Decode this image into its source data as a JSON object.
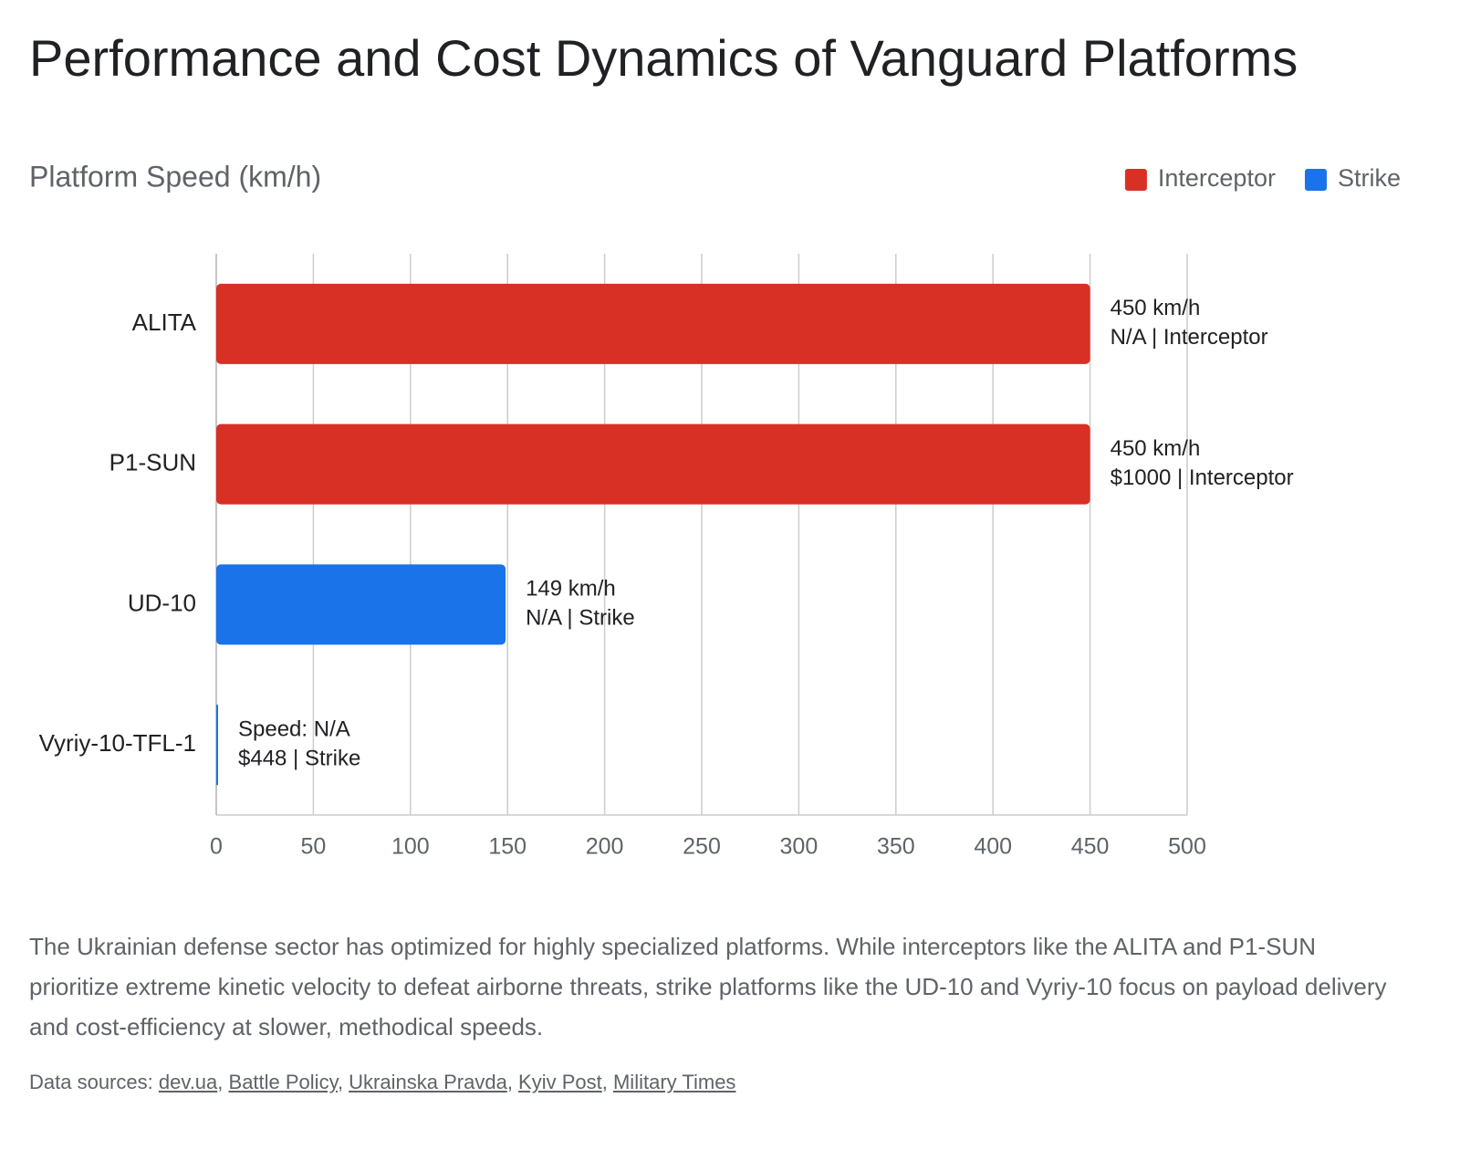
{
  "chart_data": {
    "type": "bar",
    "orientation": "horizontal",
    "title": "Performance and Cost Dynamics of Vanguard Platforms",
    "subtitle": "Platform Speed (km/h)",
    "categories": [
      "ALITA",
      "P1-SUN",
      "UD-10",
      "Vyriy-10-TFL-1"
    ],
    "series": [
      {
        "name": "Interceptor",
        "color": "#d93025",
        "values": [
          450,
          450,
          null,
          null
        ],
        "value_labels": [
          "450 km/h",
          "450 km/h",
          null,
          null
        ]
      },
      {
        "name": "Strike",
        "color": "#1a73e8",
        "values": [
          null,
          null,
          149,
          0
        ],
        "value_labels": [
          null,
          null,
          "149 km/h",
          "Speed: N/A"
        ]
      }
    ],
    "annotations": [
      "N/A | Interceptor",
      "$1000 | Interceptor",
      "N/A | Strike",
      "$448 | Strike"
    ],
    "xlim": [
      0,
      500
    ],
    "xticks": [
      0,
      50,
      100,
      150,
      200,
      250,
      300,
      350,
      400,
      450,
      500
    ],
    "grid": true,
    "legend": "top-right"
  },
  "description": "The Ukrainian defense sector has optimized for highly specialized platforms. While interceptors like the ALITA and P1-SUN prioritize extreme kinetic velocity to defeat airborne threats, strike platforms like the UD-10 and Vyriy-10 focus on payload delivery and cost-efficiency at slower, methodical speeds.",
  "sources": {
    "label": "Data sources:",
    "separator": ", ",
    "links": [
      "dev.ua",
      "Battle Policy",
      "Ukrainska Pravda",
      "Kyiv Post",
      "Military Times"
    ]
  }
}
